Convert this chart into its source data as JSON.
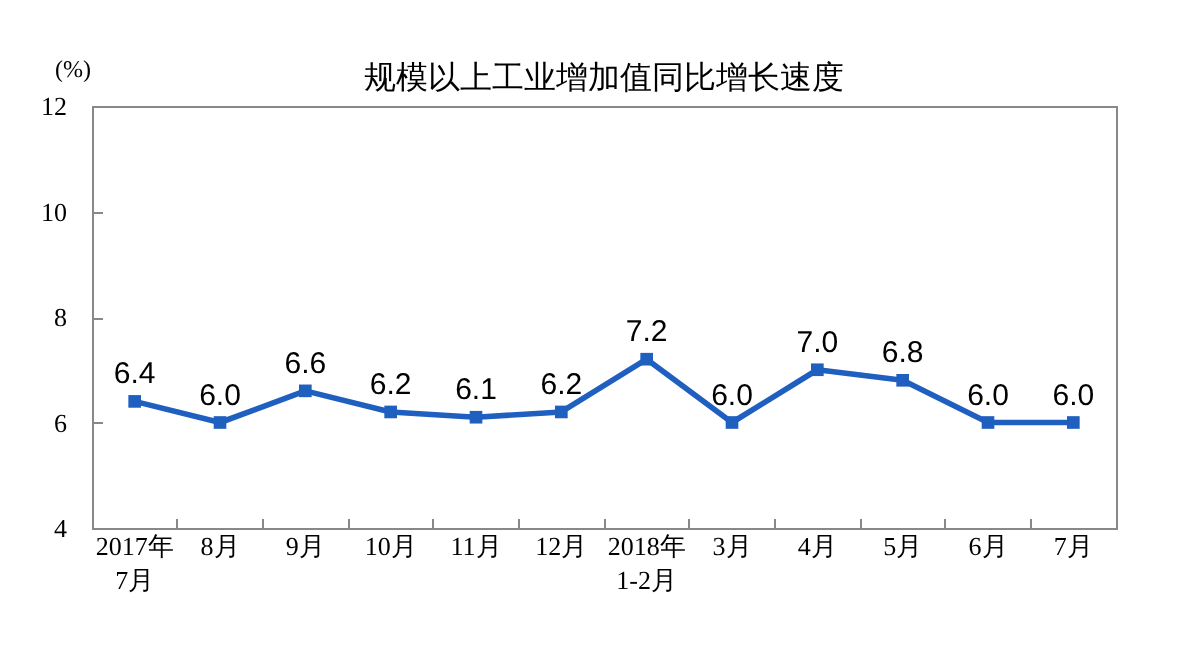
{
  "chart_data": {
    "type": "line",
    "title": "规模以上工业增加值同比增长速度",
    "ylabel": "(%)",
    "categories": [
      "2017年\n7月",
      "8月",
      "9月",
      "10月",
      "11月",
      "12月",
      "2018年\n1-2月",
      "3月",
      "4月",
      "5月",
      "6月",
      "7月"
    ],
    "values": [
      6.4,
      6.0,
      6.6,
      6.2,
      6.1,
      6.2,
      7.2,
      6.0,
      7.0,
      6.8,
      6.0,
      6.0
    ],
    "value_labels": [
      "6.4",
      "6.0",
      "6.6",
      "6.2",
      "6.1",
      "6.2",
      "7.2",
      "6.0",
      "7.0",
      "6.8",
      "6.0",
      "6.0"
    ],
    "color": "#1f5fbf",
    "ylim": [
      4,
      12
    ],
    "yticks": [
      4,
      6,
      8,
      10,
      12
    ],
    "marker": "square",
    "line_style": "solid"
  }
}
